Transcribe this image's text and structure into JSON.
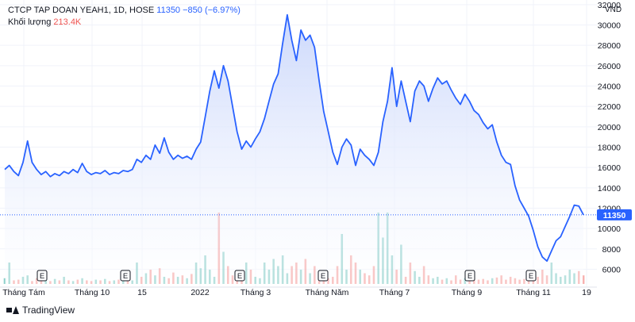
{
  "legend": {
    "symbol": "CTCP TAP DOAN YEAH1, 1D, HOSE",
    "last": "11350",
    "change": "−850 (−6.97%)",
    "volume_label": "Khối lượng",
    "volume_value": "213.4K"
  },
  "footer": {
    "brand": "TradingView"
  },
  "colors": {
    "line": "#2962ff",
    "area_top": "#c9d6fb",
    "up_volume": "#26a69a",
    "down_volume": "#ef5350",
    "price_badge": "#2962ff"
  },
  "chart_data": {
    "type": "area",
    "currency": "VND",
    "y_ticks": [
      6000,
      8000,
      10000,
      12000,
      14000,
      16000,
      18000,
      20000,
      22000,
      24000,
      26000,
      28000,
      30000,
      32000
    ],
    "ylim": [
      4400,
      32300
    ],
    "x_tick_labels": [
      "Tháng Tám",
      "Tháng 10",
      "15",
      "2022",
      "Tháng 3",
      "Tháng Năm",
      "Tháng 7",
      "Tháng 9",
      "Tháng 11",
      "19"
    ],
    "last_price_label": "11350",
    "last_price": 11350,
    "grid": true,
    "earnings_markers": [
      "E",
      "E",
      "E",
      "E",
      "E",
      "E"
    ],
    "price_series": [
      15800,
      16200,
      15600,
      15200,
      16500,
      18600,
      16500,
      15800,
      15300,
      15600,
      15100,
      15400,
      15200,
      15600,
      15400,
      15800,
      15500,
      16400,
      15600,
      15300,
      15500,
      15400,
      15700,
      15300,
      15500,
      15400,
      15700,
      15600,
      15800,
      16800,
      16500,
      17200,
      16800,
      18200,
      17400,
      18900,
      17500,
      16800,
      17200,
      16900,
      17100,
      16800,
      17800,
      18500,
      21000,
      23500,
      25500,
      23800,
      26000,
      24500,
      22000,
      19500,
      17800,
      18600,
      18000,
      18800,
      19500,
      20800,
      22500,
      24200,
      25200,
      28200,
      31000,
      28500,
      26500,
      29500,
      28500,
      29000,
      27800,
      24500,
      21500,
      19500,
      17500,
      16300,
      18000,
      18800,
      18200,
      16200,
      17800,
      17200,
      16800,
      16200,
      17500,
      20500,
      22500,
      25800,
      22000,
      24500,
      22500,
      20500,
      23500,
      24500,
      24000,
      22500,
      23800,
      24800,
      24200,
      24500,
      23600,
      22800,
      22200,
      23200,
      22500,
      21600,
      21200,
      20400,
      19800,
      20200,
      18500,
      17200,
      16500,
      16300,
      14200,
      12800,
      12000,
      11200,
      9800,
      8200,
      7200,
      6800,
      7800,
      8800,
      9200,
      10200,
      11200,
      12300,
      12200,
      11350
    ],
    "volume_series": [
      0.08,
      0.3,
      0.05,
      0.06,
      0.1,
      0.12,
      0.04,
      0.08,
      0.05,
      0.06,
      0.04,
      0.07,
      0.05,
      0.1,
      0.05,
      0.04,
      0.06,
      0.08,
      0.05,
      0.04,
      0.06,
      0.05,
      0.07,
      0.04,
      0.05,
      0.06,
      0.04,
      0.08,
      0.05,
      0.3,
      0.1,
      0.15,
      0.2,
      0.12,
      0.22,
      0.1,
      0.08,
      0.16,
      0.1,
      0.12,
      0.08,
      0.14,
      0.3,
      0.22,
      0.4,
      0.2,
      0.1,
      1.0,
      0.45,
      0.25,
      0.12,
      0.15,
      0.1,
      0.3,
      0.2,
      0.1,
      0.08,
      0.3,
      0.2,
      0.35,
      0.25,
      0.4,
      0.15,
      0.25,
      0.3,
      0.2,
      0.35,
      0.15,
      0.25,
      0.1,
      0.12,
      0.08,
      0.1,
      0.25,
      0.7,
      0.2,
      0.4,
      0.3,
      0.2,
      0.15,
      0.12,
      0.25,
      1.0,
      0.65,
      1.0,
      0.4,
      0.2,
      0.55,
      0.1,
      0.3,
      0.18,
      0.1,
      0.25,
      0.12,
      0.08,
      0.1,
      0.06,
      0.08,
      0.05,
      0.12,
      0.06,
      0.08,
      0.05,
      0.1,
      0.06,
      0.07,
      0.05,
      0.08,
      0.09,
      0.12,
      0.06,
      0.1,
      0.08,
      0.06,
      0.07,
      0.09,
      0.08,
      0.1,
      0.2,
      0.12,
      0.3,
      0.15,
      0.1,
      0.12,
      0.2,
      0.15,
      0.18,
      0.12
    ],
    "volume_up": [
      1,
      1,
      0,
      0,
      1,
      1,
      0,
      0,
      0,
      1,
      0,
      1,
      0,
      1,
      0,
      1,
      0,
      1,
      0,
      0,
      1,
      0,
      1,
      0,
      1,
      0,
      1,
      0,
      1,
      1,
      0,
      1,
      0,
      1,
      0,
      1,
      0,
      0,
      1,
      0,
      1,
      0,
      1,
      1,
      1,
      1,
      1,
      0,
      1,
      0,
      0,
      0,
      0,
      1,
      0,
      1,
      1,
      1,
      1,
      1,
      1,
      1,
      1,
      0,
      0,
      1,
      0,
      1,
      0,
      0,
      0,
      0,
      0,
      0,
      1,
      1,
      0,
      0,
      1,
      0,
      0,
      0,
      1,
      1,
      1,
      1,
      0,
      1,
      0,
      0,
      1,
      1,
      0,
      0,
      1,
      1,
      0,
      1,
      0,
      0,
      0,
      1,
      0,
      0,
      0,
      0,
      0,
      1,
      0,
      0,
      0,
      0,
      0,
      0,
      0,
      0,
      0,
      0,
      0,
      0,
      1,
      1,
      1,
      1,
      1,
      1,
      0,
      0
    ]
  }
}
